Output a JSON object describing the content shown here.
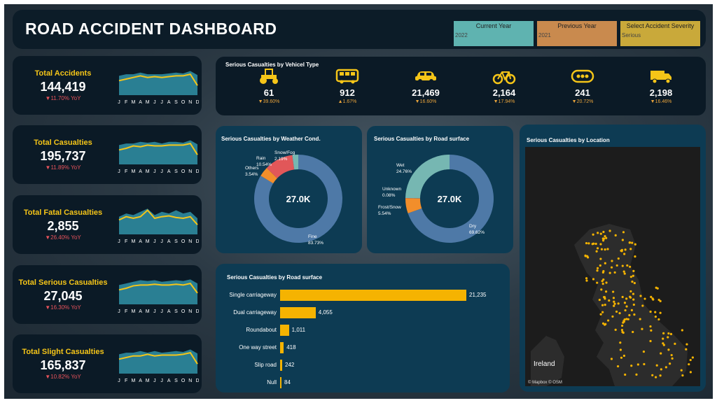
{
  "header": {
    "title": "ROAD ACCIDENT DASHBOARD",
    "filters": [
      {
        "label": "Current Year",
        "value": "2022",
        "color": "#5fb3b0"
      },
      {
        "label": "Previous Year",
        "value": "2021",
        "color": "#c98a4e"
      },
      {
        "label": "Select Accident Severity",
        "value": "Serious",
        "color": "#c9a93a"
      }
    ]
  },
  "kpis": [
    {
      "name": "Total Accidents",
      "value": "144,419",
      "yoy": "▼11.70% YoY",
      "months": [
        "J",
        "F",
        "M",
        "A",
        "M",
        "J",
        "J",
        "A",
        "S",
        "O",
        "N",
        "D"
      ],
      "current": [
        58,
        60,
        62,
        64,
        62,
        63,
        62,
        63,
        64,
        64,
        66,
        52
      ],
      "previous": [
        64,
        66,
        66,
        68,
        66,
        66,
        66,
        67,
        68,
        67,
        70,
        65
      ]
    },
    {
      "name": "Total Casualties",
      "value": "195,737",
      "yoy": "▼11.89% YoY",
      "months": [
        "J",
        "F",
        "M",
        "A",
        "M",
        "J",
        "J",
        "A",
        "S",
        "O",
        "N",
        "D"
      ],
      "current": [
        58,
        60,
        63,
        62,
        64,
        63,
        63,
        64,
        64,
        64,
        66,
        52
      ],
      "previous": [
        64,
        66,
        66,
        68,
        67,
        68,
        66,
        68,
        68,
        67,
        70,
        65
      ]
    },
    {
      "name": "Total Fatal Casualties",
      "value": "2,855",
      "yoy": "▼26.40% YoY",
      "months": [
        "J",
        "F",
        "M",
        "A",
        "M",
        "J",
        "J",
        "A",
        "S",
        "O",
        "N",
        "D"
      ],
      "current": [
        58,
        62,
        60,
        62,
        70,
        60,
        62,
        63,
        61,
        60,
        62,
        52
      ],
      "previous": [
        62,
        66,
        64,
        68,
        72,
        64,
        68,
        66,
        70,
        66,
        68,
        60
      ]
    },
    {
      "name": "Total Serious Casualties",
      "value": "27,045",
      "yoy": "▼16.30% YoY",
      "months": [
        "J",
        "F",
        "M",
        "A",
        "M",
        "J",
        "J",
        "A",
        "S",
        "O",
        "N",
        "D"
      ],
      "current": [
        58,
        60,
        63,
        64,
        64,
        65,
        64,
        64,
        65,
        64,
        66,
        54
      ],
      "previous": [
        64,
        66,
        68,
        70,
        69,
        70,
        68,
        69,
        70,
        69,
        71,
        66
      ]
    },
    {
      "name": "Total Slight Casualties",
      "value": "165,837",
      "yoy": "▼10.82% YoY",
      "months": [
        "J",
        "F",
        "M",
        "A",
        "M",
        "J",
        "J",
        "A",
        "S",
        "O",
        "N",
        "D"
      ],
      "current": [
        58,
        60,
        62,
        62,
        64,
        62,
        63,
        63,
        63,
        64,
        66,
        52
      ],
      "previous": [
        64,
        66,
        66,
        68,
        66,
        68,
        66,
        67,
        68,
        67,
        70,
        65
      ]
    }
  ],
  "vehicle": {
    "title": "Serious Casualties by Vehicel Type",
    "items": [
      {
        "icon": "tractor-icon",
        "value": "61",
        "change": "▼39.60%"
      },
      {
        "icon": "bus-icon",
        "value": "912",
        "change": "▲1.67%"
      },
      {
        "icon": "car-icon",
        "value": "21,469",
        "change": "▼16.60%"
      },
      {
        "icon": "bicycle-icon",
        "value": "2,164",
        "change": "▼17.94%"
      },
      {
        "icon": "other-icon",
        "value": "241",
        "change": "▼20.72%"
      },
      {
        "icon": "truck-icon",
        "value": "2,198",
        "change": "▼16.46%"
      }
    ]
  },
  "weather": {
    "title": "Serious Casualties by Weather Cond.",
    "center": "27.0K",
    "slices": [
      {
        "name": "Fine",
        "pct": "83.73%",
        "value": 83.73,
        "color": "#4e79a7"
      },
      {
        "name": "Others",
        "pct": "3.54%",
        "value": 3.54,
        "color": "#f28e2b"
      },
      {
        "name": "Rain",
        "pct": "10.54%",
        "value": 10.54,
        "color": "#e15759"
      },
      {
        "name": "Snow/Fog",
        "pct": "2.19%",
        "value": 2.19,
        "color": "#76b7b2"
      }
    ]
  },
  "road_surface_donut": {
    "title": "Serious Casualties by Road surface",
    "center": "27.0K",
    "slices": [
      {
        "name": "Dry",
        "pct": "69.62%",
        "value": 69.62,
        "color": "#4e79a7"
      },
      {
        "name": "Frost/Snow",
        "pct": "5.54%",
        "value": 5.54,
        "color": "#f28e2b"
      },
      {
        "name": "Unknown",
        "pct": "0.08%",
        "value": 0.08,
        "color": "#e15759"
      },
      {
        "name": "Wet",
        "pct": "24.76%",
        "value": 24.76,
        "color": "#76b7b2"
      }
    ]
  },
  "road_type_bar": {
    "title": "Serious Casualties by Road surface",
    "bar_color": "#f5b301"
  },
  "map": {
    "title": "Serious Casualties by Location",
    "country_label": "Ireland",
    "attribution": "© Mapbox © OSM"
  },
  "chart_data": [
    {
      "type": "pie",
      "title": "Serious Casualties by Weather Cond.",
      "categories": [
        "Fine",
        "Others",
        "Rain",
        "Snow/Fog"
      ],
      "values": [
        83.73,
        3.54,
        10.54,
        2.19
      ]
    },
    {
      "type": "pie",
      "title": "Serious Casualties by Road surface",
      "categories": [
        "Dry",
        "Frost/Snow",
        "Unknown",
        "Wet"
      ],
      "values": [
        69.62,
        5.54,
        0.08,
        24.76
      ]
    },
    {
      "type": "bar",
      "title": "Serious Casualties by Road surface",
      "categories": [
        "Single carriageway",
        "Dual carriageway",
        "Roundabout",
        "One way street",
        "Slip road",
        "Null"
      ],
      "values": [
        21235,
        4055,
        1011,
        418,
        242,
        84
      ],
      "labels": [
        "21,235",
        "4,055",
        "1,011",
        "418",
        "242",
        "84"
      ]
    }
  ]
}
